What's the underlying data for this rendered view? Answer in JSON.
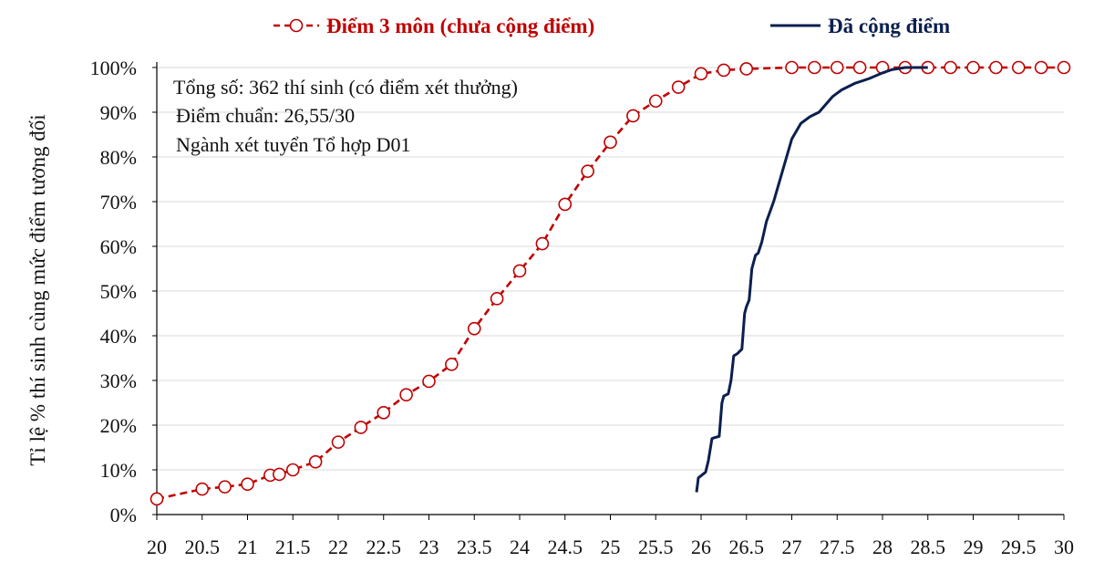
{
  "chart_data": {
    "type": "line",
    "title": "",
    "xlabel": "",
    "ylabel": "Tỉ lệ % thí sinh cùng mức điểm tương đối",
    "xlim": [
      20,
      30
    ],
    "ylim": [
      0,
      100
    ],
    "x_ticks": [
      "20",
      "20.5",
      "21",
      "21.5",
      "22",
      "22.5",
      "23",
      "23.5",
      "24",
      "24.5",
      "25",
      "25.5",
      "26",
      "26.5",
      "27",
      "27.5",
      "28",
      "28.5",
      "29",
      "29.5",
      "30"
    ],
    "y_ticks": [
      "0%",
      "10%",
      "20%",
      "30%",
      "40%",
      "50%",
      "60%",
      "70%",
      "80%",
      "90%",
      "100%"
    ],
    "legend_position": "top",
    "annotations": [
      "Tổng số: 362 thí sinh  (có điểm xét thưởng)",
      "Điểm chuẩn: 26,55/30",
      "Ngành xét tuyển Tổ hợp D01"
    ],
    "series": [
      {
        "name": "Điểm 3 môn (chưa cộng điểm)",
        "color": "#c00000",
        "style": "dashed-circle-markers",
        "x": [
          20,
          20.5,
          20.75,
          21,
          21.25,
          21.35,
          21.5,
          21.75,
          22,
          22.25,
          22.5,
          22.75,
          23,
          23.25,
          23.5,
          23.75,
          24,
          24.25,
          24.5,
          24.75,
          25,
          25.25,
          25.5,
          25.75,
          26,
          26.25,
          26.5,
          27,
          27.25,
          27.5,
          27.75,
          28,
          28.25,
          28.5,
          28.75,
          29,
          29.25,
          29.5,
          29.75,
          30
        ],
        "y": [
          3.5,
          5.7,
          6.2,
          6.8,
          8.8,
          9.0,
          10.0,
          11.8,
          16.2,
          19.5,
          22.8,
          26.8,
          29.8,
          33.6,
          41.6,
          48.3,
          54.5,
          60.6,
          69.4,
          76.8,
          83.3,
          89.2,
          92.5,
          95.6,
          98.6,
          99.4,
          99.7,
          100,
          100,
          100,
          100,
          100,
          100,
          100,
          100,
          100,
          100,
          100,
          100,
          100
        ]
      },
      {
        "name": "Đã cộng điểm",
        "color": "#0b1f4f",
        "style": "solid",
        "x": [
          25.95,
          25.97,
          26.05,
          26.08,
          26.12,
          26.15,
          26.2,
          26.23,
          26.25,
          26.3,
          26.33,
          26.36,
          26.4,
          26.45,
          26.48,
          26.5,
          26.53,
          26.56,
          26.6,
          26.63,
          26.67,
          26.72,
          26.8,
          26.9,
          27.0,
          27.1,
          27.2,
          27.3,
          27.45,
          27.55,
          27.7,
          27.85,
          28.0,
          28.1,
          28.25,
          28.5
        ],
        "y": [
          5,
          8.2,
          9.5,
          12,
          17,
          17.2,
          17.5,
          25,
          26.5,
          27,
          30,
          35.5,
          36,
          37,
          45,
          46.5,
          48,
          55,
          58,
          58.5,
          61,
          65.5,
          70,
          77,
          84,
          87.5,
          89,
          90,
          93.5,
          95,
          96.5,
          97.5,
          98.8,
          99.5,
          100,
          100
        ]
      }
    ]
  }
}
